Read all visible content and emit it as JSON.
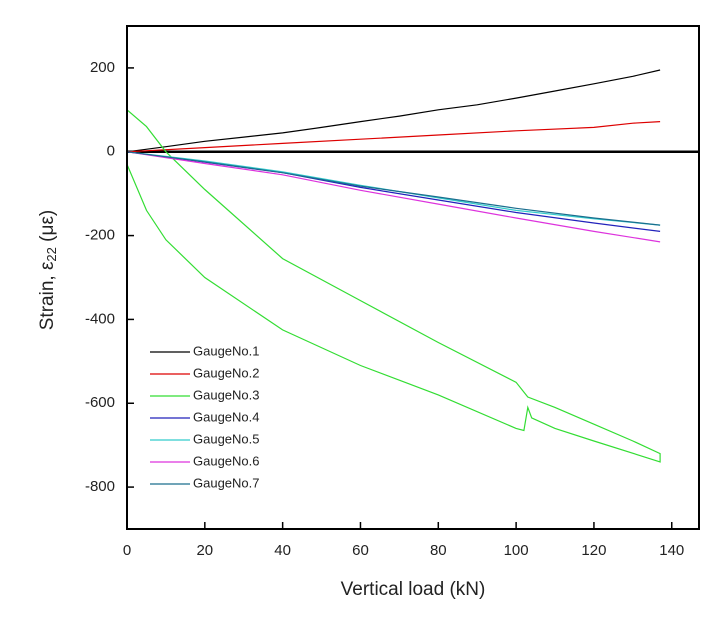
{
  "chart_data": {
    "type": "line",
    "x_label": "Vertical load (kN)",
    "y_label": {
      "prefix": "Strain, ε",
      "subscript": "22",
      "suffix": " (με)"
    },
    "xlim": [
      0,
      147
    ],
    "xticks": [
      0,
      20,
      40,
      60,
      80,
      100,
      120,
      140
    ],
    "ylim": [
      -900,
      300
    ],
    "yticks": [
      -800,
      -600,
      -400,
      -200,
      0,
      200
    ],
    "legend": "lower-left",
    "series": [
      {
        "name": "GaugeNo.1",
        "color": "#000000",
        "x": [
          0,
          10,
          20,
          30,
          40,
          50,
          60,
          70,
          80,
          90,
          100,
          110,
          120,
          130,
          137
        ],
        "values": [
          0,
          12,
          25,
          35,
          45,
          58,
          72,
          85,
          100,
          112,
          128,
          145,
          162,
          180,
          195
        ]
      },
      {
        "name": "GaugeNo.2",
        "color": "#dd0000",
        "x": [
          0,
          20,
          40,
          60,
          80,
          100,
          120,
          130,
          137
        ],
        "values": [
          0,
          10,
          20,
          30,
          40,
          50,
          58,
          68,
          72
        ]
      },
      {
        "name": "GaugeNo.3",
        "color": "#33dd33",
        "x": [
          0,
          5,
          10,
          20,
          40,
          60,
          80,
          100,
          103,
          110,
          120,
          130,
          137,
          137,
          120,
          110,
          104,
          103,
          102,
          100,
          80,
          60,
          40,
          20,
          10,
          5,
          0
        ],
        "values": [
          100,
          60,
          0,
          -90,
          -255,
          -355,
          -455,
          -550,
          -585,
          -610,
          -650,
          -690,
          -720,
          -740,
          -690,
          -660,
          -635,
          -610,
          -665,
          -660,
          -580,
          -510,
          -425,
          -300,
          -210,
          -140,
          -30
        ]
      },
      {
        "name": "GaugeNo.4",
        "color": "#2222bb",
        "x": [
          0,
          20,
          40,
          60,
          80,
          100,
          120,
          137
        ],
        "values": [
          0,
          -25,
          -50,
          -85,
          -115,
          -145,
          -170,
          -190
        ]
      },
      {
        "name": "GaugeNo.5",
        "color": "#33cccc",
        "x": [
          0,
          20,
          40,
          60,
          80,
          100,
          120,
          137
        ],
        "values": [
          0,
          -22,
          -48,
          -80,
          -110,
          -140,
          -160,
          -175
        ]
      },
      {
        "name": "GaugeNo.6",
        "color": "#dd33dd",
        "x": [
          0,
          20,
          40,
          60,
          80,
          100,
          120,
          137
        ],
        "values": [
          0,
          -28,
          -55,
          -92,
          -125,
          -158,
          -190,
          -215
        ]
      },
      {
        "name": "GaugeNo.7",
        "color": "#1a6e8e",
        "x": [
          0,
          20,
          40,
          60,
          80,
          100,
          120,
          137
        ],
        "values": [
          0,
          -24,
          -50,
          -82,
          -108,
          -135,
          -158,
          -175
        ]
      }
    ]
  }
}
